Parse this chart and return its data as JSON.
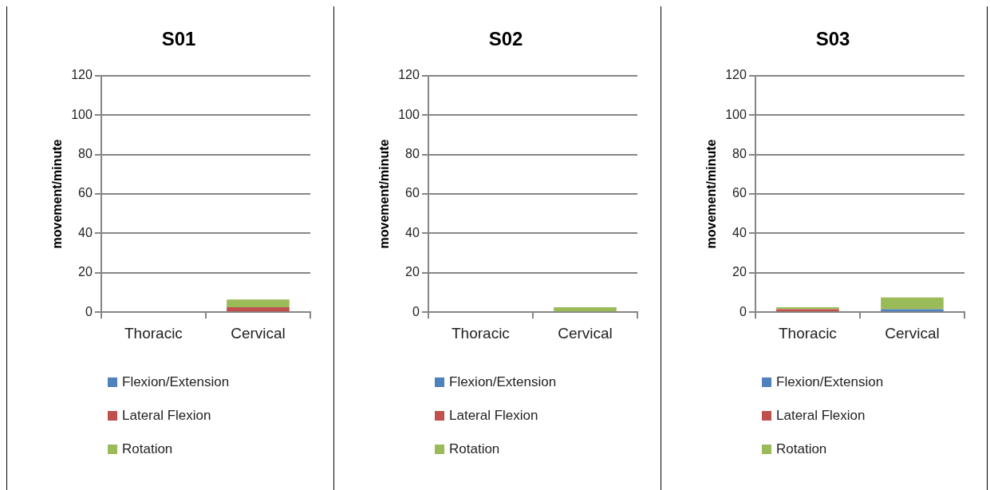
{
  "chart_data": [
    {
      "type": "bar",
      "title": "S01",
      "ylabel": "movement/minute",
      "categories": [
        "Thoracic",
        "Cervical"
      ],
      "stacked": true,
      "ylim": [
        0,
        120
      ],
      "yticks": [
        0,
        20,
        40,
        60,
        80,
        100,
        120
      ],
      "grid": "y",
      "legend": "bottom",
      "series": [
        {
          "name": "Flexion/Extension",
          "color": "#4f81bd",
          "values": [
            0,
            0
          ]
        },
        {
          "name": "Lateral Flexion",
          "color": "#c0504d",
          "values": [
            0,
            2.5
          ]
        },
        {
          "name": "Rotation",
          "color": "#9bbb59",
          "values": [
            0,
            4
          ]
        }
      ]
    },
    {
      "type": "bar",
      "title": "S02",
      "ylabel": "movement/minute",
      "categories": [
        "Thoracic",
        "Cervical"
      ],
      "stacked": true,
      "ylim": [
        0,
        120
      ],
      "yticks": [
        0,
        20,
        40,
        60,
        80,
        100,
        120
      ],
      "grid": "y",
      "legend": "bottom",
      "series": [
        {
          "name": "Flexion/Extension",
          "color": "#4f81bd",
          "values": [
            0,
            0
          ]
        },
        {
          "name": "Lateral Flexion",
          "color": "#c0504d",
          "values": [
            0,
            0
          ]
        },
        {
          "name": "Rotation",
          "color": "#9bbb59",
          "values": [
            0,
            2.5
          ]
        }
      ]
    },
    {
      "type": "bar",
      "title": "S03",
      "ylabel": "movement/minute",
      "categories": [
        "Thoracic",
        "Cervical"
      ],
      "stacked": true,
      "ylim": [
        0,
        120
      ],
      "yticks": [
        0,
        20,
        40,
        60,
        80,
        100,
        120
      ],
      "grid": "y",
      "legend": "bottom",
      "series": [
        {
          "name": "Flexion/Extension",
          "color": "#4f81bd",
          "values": [
            0,
            1.5
          ]
        },
        {
          "name": "Lateral Flexion",
          "color": "#c0504d",
          "values": [
            1.5,
            0
          ]
        },
        {
          "name": "Rotation",
          "color": "#9bbb59",
          "values": [
            1,
            6
          ]
        }
      ]
    }
  ]
}
